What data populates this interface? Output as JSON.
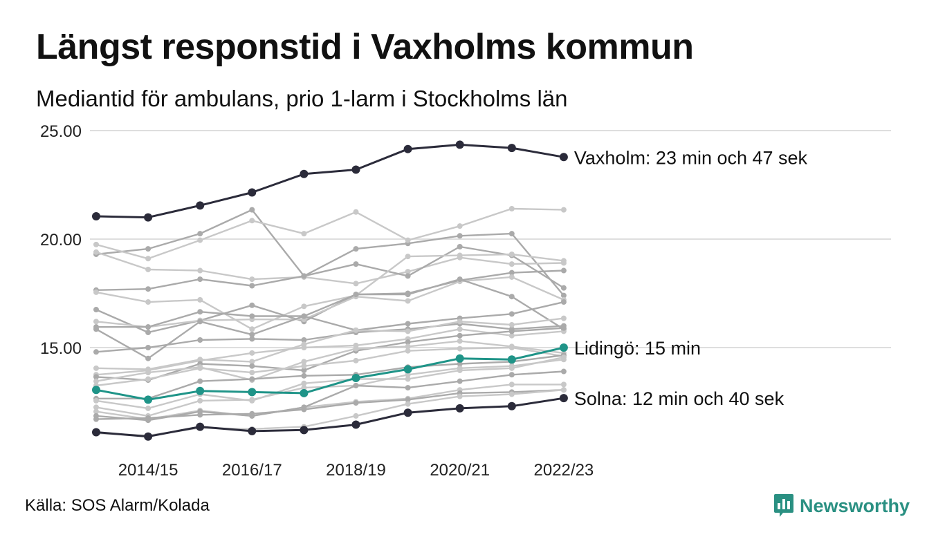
{
  "header": {
    "title": "Längst responstid i Vaxholms kommun",
    "subtitle": "Mediantid för ambulans, prio 1-larm i Stockholms län"
  },
  "footer": {
    "source": "Källa: SOS Alarm/Kolada",
    "brand": "Newsworthy"
  },
  "colors": {
    "highlight_dark": "#2b2b3a",
    "highlight_teal": "#1f9488",
    "background_series": [
      "#aaaaaa",
      "#c8c8c8"
    ],
    "brand": "#2a9082"
  },
  "chart_data": {
    "type": "line",
    "x": [
      "2013/14",
      "2014/15",
      "2015/16",
      "2016/17",
      "2017/18",
      "2018/19",
      "2019/20",
      "2020/21",
      "2021/22",
      "2022/23"
    ],
    "xticks": [
      "2014/15",
      "2016/17",
      "2018/19",
      "2020/21",
      "2022/23"
    ],
    "ylim": [
      10.5,
      25.5
    ],
    "yticks": [
      15,
      20,
      25
    ],
    "ytick_labels": [
      "15.00",
      "20.00",
      "25.00"
    ],
    "grid": true,
    "series": [
      {
        "name": "Vaxholm",
        "label": "Vaxholm: 23 min och 47 sek",
        "highlight": "dark",
        "values": [
          21.05,
          21.0,
          21.55,
          22.15,
          23.0,
          23.2,
          24.15,
          24.35,
          24.2,
          23.78
        ]
      },
      {
        "name": "Lidingö",
        "label": "Lidingö: 15 min",
        "highlight": "teal",
        "values": [
          13.05,
          12.6,
          13.0,
          12.95,
          12.9,
          13.6,
          14.0,
          14.5,
          14.45,
          15.0
        ]
      },
      {
        "name": "Solna",
        "label": "Solna: 12 min och 40 sek",
        "highlight": "dark",
        "values": [
          11.1,
          10.9,
          11.35,
          11.15,
          11.2,
          11.45,
          12.0,
          12.2,
          12.3,
          12.67
        ]
      },
      {
        "values": [
          19.3,
          19.55,
          20.25,
          21.35,
          18.3,
          19.55,
          19.8,
          20.15,
          20.25,
          17.4
        ],
        "shade": "dark"
      },
      {
        "values": [
          19.75,
          19.1,
          19.95,
          20.85,
          20.25,
          21.25,
          19.95,
          20.6,
          21.4,
          21.35
        ],
        "shade": "light"
      },
      {
        "values": [
          19.4,
          18.6,
          18.55,
          18.15,
          18.25,
          17.95,
          18.5,
          19.15,
          18.85,
          18.9
        ],
        "shade": "light"
      },
      {
        "values": [
          17.65,
          17.7,
          18.15,
          17.85,
          18.3,
          18.85,
          18.3,
          19.65,
          19.25,
          17.75
        ],
        "shade": "dark"
      },
      {
        "values": [
          17.55,
          17.1,
          17.2,
          15.85,
          16.9,
          17.4,
          19.2,
          19.25,
          19.3,
          19.0
        ],
        "shade": "light"
      },
      {
        "values": [
          16.75,
          15.7,
          16.25,
          16.95,
          16.2,
          17.45,
          17.5,
          18.1,
          18.45,
          18.55
        ],
        "shade": "dark"
      },
      {
        "values": [
          16.2,
          15.95,
          16.25,
          16.3,
          16.3,
          17.35,
          17.15,
          18.05,
          18.25,
          17.2
        ],
        "shade": "light"
      },
      {
        "values": [
          15.95,
          15.95,
          16.65,
          16.45,
          16.45,
          17.45,
          17.45,
          18.15,
          17.35,
          15.85
        ],
        "shade": "dark"
      },
      {
        "values": [
          15.85,
          14.5,
          16.2,
          15.6,
          16.45,
          15.8,
          16.1,
          16.35,
          16.55,
          17.1
        ],
        "shade": "dark"
      },
      {
        "values": [
          14.8,
          15.0,
          15.35,
          15.4,
          15.35,
          15.7,
          15.85,
          16.1,
          15.85,
          16.0
        ],
        "shade": "dark"
      },
      {
        "values": [
          14.05,
          14.0,
          14.45,
          14.35,
          15.15,
          15.8,
          15.75,
          16.2,
          16.05,
          16.35
        ],
        "shade": "light"
      },
      {
        "values": [
          13.75,
          13.95,
          14.4,
          14.75,
          15.0,
          15.1,
          15.4,
          15.85,
          15.55,
          15.75
        ],
        "shade": "light"
      },
      {
        "values": [
          13.65,
          13.5,
          14.25,
          14.15,
          13.95,
          14.85,
          15.25,
          15.55,
          15.75,
          15.9
        ],
        "shade": "dark"
      },
      {
        "values": [
          13.45,
          13.85,
          14.1,
          13.5,
          14.35,
          14.95,
          15.05,
          15.3,
          15.05,
          14.75
        ],
        "shade": "light"
      },
      {
        "values": [
          13.25,
          13.55,
          14.05,
          13.85,
          14.15,
          14.4,
          14.85,
          14.95,
          15.0,
          14.6
        ],
        "shade": "light"
      },
      {
        "values": [
          12.65,
          12.65,
          13.45,
          13.55,
          13.7,
          13.75,
          14.1,
          14.25,
          14.35,
          14.65
        ],
        "shade": "dark"
      },
      {
        "values": [
          12.55,
          12.2,
          12.85,
          12.55,
          13.35,
          13.55,
          13.55,
          13.95,
          14.05,
          14.55
        ],
        "shade": "light"
      },
      {
        "values": [
          12.25,
          11.85,
          12.55,
          12.6,
          13.15,
          13.25,
          13.75,
          14.05,
          14.15,
          14.45
        ],
        "shade": "light"
      },
      {
        "values": [
          12.05,
          11.7,
          12.1,
          11.85,
          12.25,
          12.5,
          12.65,
          13.05,
          13.3,
          13.3
        ],
        "shade": "light"
      },
      {
        "values": [
          11.85,
          11.65,
          12.05,
          11.85,
          12.25,
          13.25,
          13.15,
          13.45,
          13.75,
          13.9
        ],
        "shade": "dark"
      },
      {
        "values": [
          11.7,
          11.75,
          11.9,
          11.95,
          12.15,
          12.45,
          12.6,
          12.9,
          12.95,
          13.05
        ],
        "shade": "dark"
      },
      {
        "values": [
          11.05,
          10.95,
          11.3,
          11.25,
          11.35,
          11.85,
          12.4,
          12.75,
          12.85,
          13.05
        ],
        "shade": "light"
      }
    ]
  }
}
